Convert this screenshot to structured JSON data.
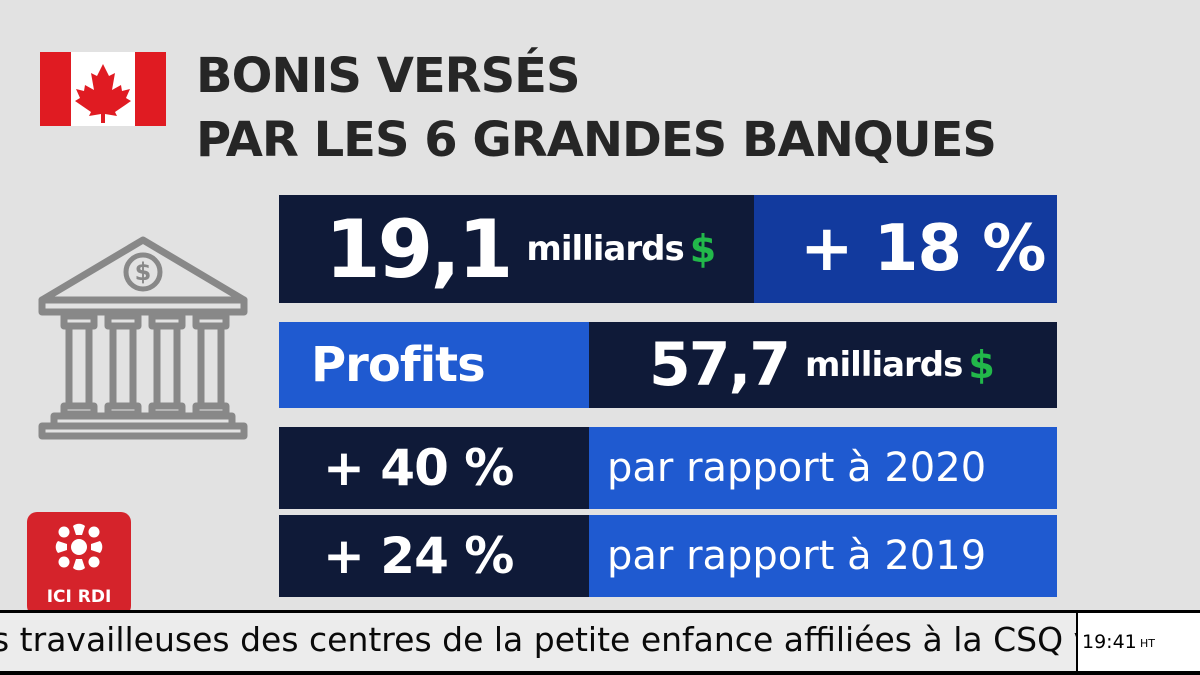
{
  "title": {
    "line1": "BONIS VERSÉS",
    "line2": "PAR LES 6 GRANDES BANQUES"
  },
  "bonus": {
    "amount": "19,1",
    "unit": "milliards",
    "currency": "$",
    "change": "+ 18 %"
  },
  "profits": {
    "label": "Profits",
    "amount": "57,7",
    "unit": "milliards",
    "currency": "$"
  },
  "comparisons": [
    {
      "change": "+ 40 %",
      "text": "par rapport à 2020"
    },
    {
      "change": "+ 24 %",
      "text": "par rapport à 2019"
    }
  ],
  "icons": {
    "flag": "canada-flag-icon",
    "bank": "bank-dollar-icon",
    "logo": "radio-canada-gem-icon"
  },
  "logo": {
    "text": "ICI RDI"
  },
  "ticker": {
    "text": "s travailleuses des centres de la petite enfance affiliées à la CSQ vont déci",
    "time": "19:41",
    "timezone": "HT"
  },
  "colors": {
    "background": "#e2e2e2",
    "dark_navy": "#0f1a38",
    "blue": "#1f5ad0",
    "dollar_green": "#22b84a",
    "logo_red": "#d5232b"
  }
}
